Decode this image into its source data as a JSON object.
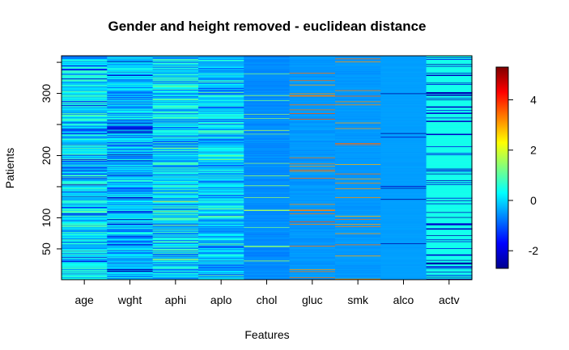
{
  "chart_data": {
    "type": "heatmap",
    "title": "Gender and height removed - euclidean distance",
    "xlabel": "Features",
    "ylabel": "Patients",
    "categories": [
      "age",
      "wght",
      "aphi",
      "aplo",
      "chol",
      "gluc",
      "smk",
      "alco",
      "actv"
    ],
    "y_ticks": [
      50,
      100,
      200,
      300
    ],
    "y_range": [
      1,
      360
    ],
    "colorbar": {
      "ticks": [
        -2,
        0,
        2,
        4
      ],
      "range": [
        -2.7,
        5.3
      ],
      "colors": [
        "#00008F",
        "#0000FF",
        "#007FFF",
        "#00FFFF",
        "#7FFF7F",
        "#FFFF00",
        "#FF7F00",
        "#FF0000",
        "#7F0000"
      ]
    },
    "series": [
      {
        "name": "age",
        "base": 0.1,
        "noise": 0.95,
        "stripe_value": -1.9,
        "stripe_rate": 0.08
      },
      {
        "name": "wght",
        "base": -0.2,
        "noise": 0.9,
        "stripe_value": -2.3,
        "stripe_rate": 0.06
      },
      {
        "name": "aphi",
        "base": 0.0,
        "noise": 1.0,
        "stripe_value": 1.3,
        "stripe_rate": 0.05
      },
      {
        "name": "aplo",
        "base": -0.2,
        "noise": 0.9,
        "stripe_value": 1.2,
        "stripe_rate": 0.05
      },
      {
        "name": "chol",
        "base": -0.6,
        "noise": 0.12,
        "stripe_value": 1.4,
        "stripe_rate": 0.06
      },
      {
        "name": "gluc",
        "base": -0.5,
        "noise": 0.1,
        "stripe_value": 3.4,
        "stripe_rate": 0.05
      },
      {
        "name": "smk",
        "base": -0.5,
        "noise": 0.08,
        "stripe_value": 3.2,
        "stripe_rate": 0.05
      },
      {
        "name": "alco",
        "base": -0.45,
        "noise": 0.03,
        "stripe_value": -2.5,
        "stripe_rate": 0.025
      },
      {
        "name": "actv",
        "base": 0.45,
        "noise": 0.03,
        "stripe_value": -2.2,
        "stripe_rate": 0.17
      }
    ]
  }
}
